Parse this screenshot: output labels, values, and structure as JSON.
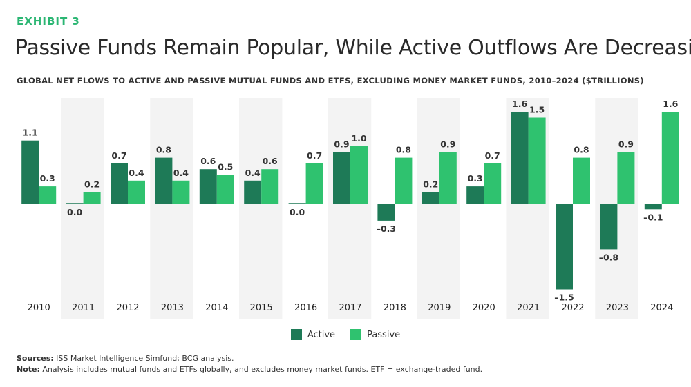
{
  "header": {
    "exhibit": "EXHIBIT 3",
    "title": "Passive Funds Remain Popular, While Active Outflows Are Decreasing",
    "subtitle": "GLOBAL NET FLOWS TO ACTIVE AND PASSIVE MUTUAL FUNDS AND ETFS, EXCLUDING MONEY MARKET FUNDS, 2010–2024 ($TRILLIONS)"
  },
  "colors": {
    "active": "#1e7a57",
    "passive": "#2fc26f",
    "band": "#f3f3f3"
  },
  "legend": {
    "active_label": "Active",
    "passive_label": "Passive"
  },
  "chart_data": {
    "type": "bar",
    "categories": [
      "2010",
      "2011",
      "2012",
      "2013",
      "2014",
      "2015",
      "2016",
      "2017",
      "2018",
      "2019",
      "2020",
      "2021",
      "2022",
      "2023",
      "2024"
    ],
    "series": [
      {
        "name": "Active",
        "values": [
          1.1,
          0.0,
          0.7,
          0.8,
          0.6,
          0.4,
          0.0,
          0.9,
          -0.3,
          0.2,
          0.3,
          1.6,
          -1.5,
          -0.8,
          -0.1
        ]
      },
      {
        "name": "Passive",
        "values": [
          0.3,
          0.2,
          0.4,
          0.4,
          0.5,
          0.6,
          0.7,
          1.0,
          0.8,
          0.9,
          0.7,
          1.5,
          0.8,
          0.9,
          1.6
        ]
      }
    ],
    "data_labels": {
      "Active": [
        "1.1",
        "0.0",
        "0.7",
        "0.8",
        "0.6",
        "0.4",
        "0.0",
        "0.9",
        "–0.3",
        "0.2",
        "0.3",
        "1.6",
        "–1.5",
        "–0.8",
        "–0.1"
      ],
      "Passive": [
        "0.3",
        "0.2",
        "0.4",
        "0.4",
        "0.5",
        "0.6",
        "0.7",
        "1.0",
        "0.8",
        "0.9",
        "0.7",
        "1.5",
        "0.8",
        "0.9",
        "1.6"
      ]
    },
    "ylim": [
      -1.5,
      1.6
    ],
    "alternating_bands": true,
    "legend_position": "bottom-center"
  },
  "notes": {
    "sources_label": "Sources:",
    "sources_text": " ISS Market Intelligence Simfund; BCG analysis.",
    "note_label": "Note:",
    "note_text": " Analysis includes mutual funds and ETFs globally, and excludes money market funds. ETF = exchange-traded fund."
  }
}
